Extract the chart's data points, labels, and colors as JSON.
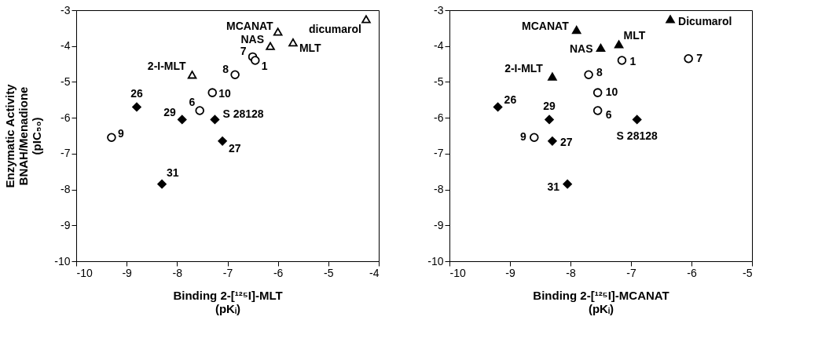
{
  "chart_data": [
    {
      "type": "scatter",
      "xlabel": "Binding 2-[¹²⁵I]-MLT\n(pKᵢ)",
      "ylabel": "Enzymatic Activity\nBNAH/Menadione\n(pIC₅₀)",
      "xlim": [
        -10,
        -4
      ],
      "ylim": [
        -10,
        -3
      ],
      "xticks": [
        -10,
        -9,
        -8,
        -7,
        -6,
        -5,
        -4
      ],
      "yticks": [
        -10,
        -9,
        -8,
        -7,
        -6,
        -5,
        -4,
        -3
      ],
      "grid": false,
      "series": [
        {
          "color": "#ffffff",
          "marker": "circle",
          "x": [
            -6.5,
            -6.45,
            -6.85,
            -7.3,
            -7.55,
            -9.3
          ],
          "values": [
            -4.3,
            -4.4,
            -4.8,
            -5.3,
            -5.8,
            -6.55
          ]
        },
        {
          "color": "#000000",
          "marker": "diamond",
          "x": [
            -8.8,
            -7.9,
            -7.25,
            -7.1,
            -8.3
          ],
          "values": [
            -5.7,
            -6.05,
            -6.05,
            -6.65,
            -7.85
          ]
        },
        {
          "color": "#ffffff",
          "marker": "triangle",
          "x": [
            -6.0,
            -6.15,
            -5.7,
            -7.7,
            -4.25
          ],
          "values": [
            -3.6,
            -4.0,
            -3.9,
            -4.8,
            -3.25
          ]
        }
      ],
      "annotations": [
        {
          "text": "7",
          "x": -6.5,
          "y": -4.3
        },
        {
          "text": "1",
          "x": -6.45,
          "y": -4.4
        },
        {
          "text": "8",
          "x": -6.85,
          "y": -4.8
        },
        {
          "text": "10",
          "x": -7.3,
          "y": -5.3
        },
        {
          "text": "6",
          "x": -7.55,
          "y": -5.8
        },
        {
          "text": "9",
          "x": -9.3,
          "y": -6.55
        },
        {
          "text": "26",
          "x": -8.8,
          "y": -5.7
        },
        {
          "text": "29",
          "x": -7.9,
          "y": -6.05
        },
        {
          "text": "S 28128",
          "x": -7.25,
          "y": -6.05
        },
        {
          "text": "27",
          "x": -7.1,
          "y": -6.65
        },
        {
          "text": "31",
          "x": -8.3,
          "y": -7.85
        },
        {
          "text": "MCANAT",
          "x": -6.0,
          "y": -3.6
        },
        {
          "text": "NAS",
          "x": -6.15,
          "y": -4.0
        },
        {
          "text": "MLT",
          "x": -5.7,
          "y": -3.9
        },
        {
          "text": "2-I-MLT",
          "x": -7.7,
          "y": -4.8
        },
        {
          "text": "dicumarol",
          "x": -4.25,
          "y": -3.25
        }
      ]
    },
    {
      "type": "scatter",
      "xlabel": "Binding 2-[¹²⁵I]-MCANAT\n(pKᵢ)",
      "xlim": [
        -10,
        -5
      ],
      "ylim": [
        -10,
        -3
      ],
      "xticks": [
        -10,
        -9,
        -8,
        -7,
        -6,
        -5
      ],
      "yticks": [
        -10,
        -9,
        -8,
        -7,
        -6,
        -5,
        -4,
        -3
      ],
      "grid": false,
      "series": [
        {
          "color": "#ffffff",
          "marker": "circle",
          "x": [
            -6.05,
            -7.15,
            -7.7,
            -7.55,
            -7.55,
            -8.6
          ],
          "values": [
            -4.35,
            -4.4,
            -4.8,
            -5.3,
            -5.8,
            -6.55
          ]
        },
        {
          "color": "#000000",
          "marker": "diamond",
          "x": [
            -9.2,
            -8.35,
            -6.9,
            -8.3,
            -8.05
          ],
          "values": [
            -5.7,
            -6.05,
            -6.05,
            -6.65,
            -7.85
          ]
        },
        {
          "color": "#000000",
          "marker": "triangle",
          "x": [
            -7.9,
            -7.5,
            -7.2,
            -8.3,
            -6.35
          ],
          "values": [
            -3.55,
            -4.05,
            -3.95,
            -4.85,
            -3.25
          ]
        }
      ],
      "annotations": [
        {
          "text": "7",
          "x": -6.05,
          "y": -4.35
        },
        {
          "text": "1",
          "x": -7.15,
          "y": -4.4
        },
        {
          "text": "8",
          "x": -7.7,
          "y": -4.8
        },
        {
          "text": "10",
          "x": -7.55,
          "y": -5.3
        },
        {
          "text": "6",
          "x": -7.55,
          "y": -5.8
        },
        {
          "text": "9",
          "x": -8.6,
          "y": -6.55
        },
        {
          "text": "26",
          "x": -9.2,
          "y": -5.7
        },
        {
          "text": "29",
          "x": -8.35,
          "y": -6.05
        },
        {
          "text": "S 28128",
          "x": -6.9,
          "y": -6.05
        },
        {
          "text": "27",
          "x": -8.3,
          "y": -6.65
        },
        {
          "text": "31",
          "x": -8.05,
          "y": -7.85
        },
        {
          "text": "MCANAT",
          "x": -7.9,
          "y": -3.55
        },
        {
          "text": "NAS",
          "x": -7.5,
          "y": -4.05
        },
        {
          "text": "MLT",
          "x": -7.2,
          "y": -3.95
        },
        {
          "text": "2-I-MLT",
          "x": -8.3,
          "y": -4.85
        },
        {
          "text": "Dicumarol",
          "x": -6.35,
          "y": -3.25
        }
      ]
    }
  ]
}
